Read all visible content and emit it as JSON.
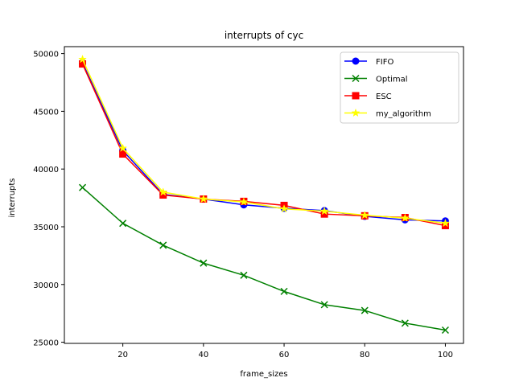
{
  "chart_data": {
    "type": "line",
    "title": "interrupts of cyc",
    "xlabel": "frame_sizes",
    "ylabel": "interrupts",
    "x": [
      10,
      20,
      30,
      40,
      50,
      60,
      70,
      80,
      90,
      100
    ],
    "xlim": [
      5.5,
      104.5
    ],
    "ylim": [
      24900,
      50600
    ],
    "xticks": [
      20,
      40,
      60,
      80,
      100
    ],
    "yticks": [
      25000,
      30000,
      35000,
      40000,
      45000,
      50000
    ],
    "grid": false,
    "legend_position": "top-right",
    "series": [
      {
        "name": "FIFO",
        "color": "#0000ff",
        "marker": "circle",
        "values": [
          49200,
          41600,
          37800,
          37400,
          36900,
          36600,
          36400,
          35900,
          35600,
          35500
        ]
      },
      {
        "name": "Optimal",
        "color": "#008000",
        "marker": "x",
        "values": [
          38400,
          35300,
          33400,
          31850,
          30800,
          29400,
          28250,
          27750,
          26650,
          26050
        ]
      },
      {
        "name": "ESC",
        "color": "#ff0000",
        "marker": "square",
        "values": [
          49100,
          41300,
          37750,
          37400,
          37200,
          36850,
          36100,
          35950,
          35800,
          35100
        ]
      },
      {
        "name": "my_algorithm",
        "color": "#ffff00",
        "marker": "star",
        "values": [
          49500,
          41800,
          38000,
          37400,
          37150,
          36550,
          36350,
          36000,
          35750,
          35300
        ]
      }
    ]
  }
}
